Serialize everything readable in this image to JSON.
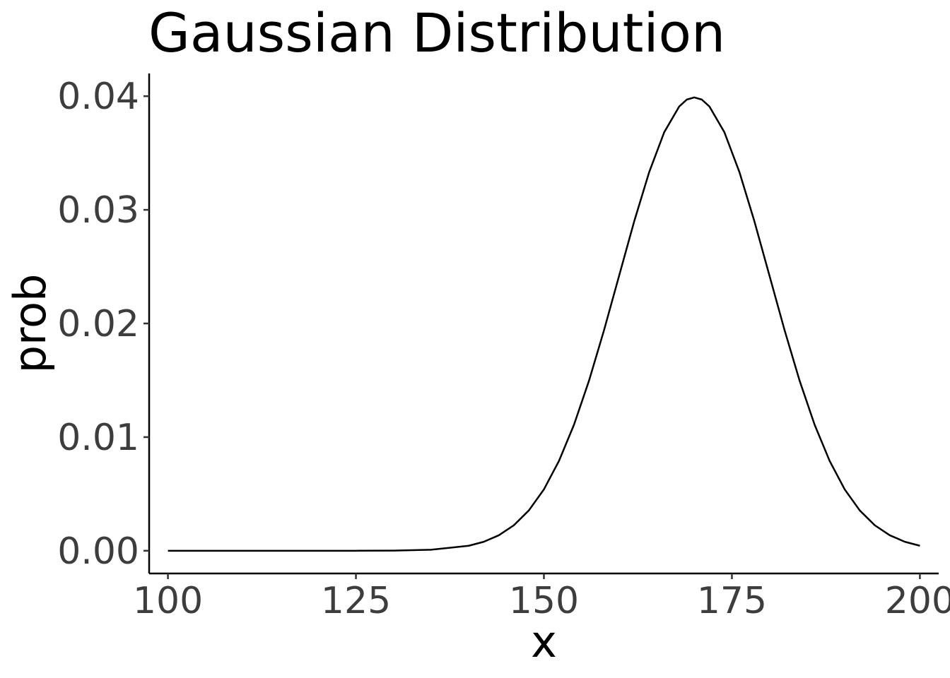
{
  "chart_data": {
    "type": "line",
    "title": "Gaussian Distribution",
    "xlabel": "x",
    "ylabel": "prob",
    "xlim": [
      97.5,
      202.5
    ],
    "ylim": [
      -0.002,
      0.042
    ],
    "x_ticks": [
      100,
      125,
      150,
      175,
      200
    ],
    "x_tick_labels": [
      "100",
      "125",
      "150",
      "175",
      "200"
    ],
    "y_ticks": [
      0,
      0.01,
      0.02,
      0.03,
      0.04
    ],
    "y_tick_labels": [
      "0.00",
      "0.01",
      "0.02",
      "0.03",
      "0.04"
    ],
    "grid": false,
    "legend": "none",
    "line_color": "#000000",
    "series": [
      {
        "x": [
          100,
          105,
          110,
          115,
          120,
          125,
          130,
          135,
          140,
          142,
          144,
          146,
          148,
          150,
          152,
          154,
          156,
          158,
          160,
          162,
          164,
          166,
          168,
          169,
          170,
          171,
          172,
          174,
          176,
          178,
          180,
          182,
          184,
          186,
          188,
          190,
          192,
          194,
          196,
          198,
          200
        ],
        "values": [
          0.0,
          0.0,
          0.0,
          0.0,
          0.0,
          0.0,
          1e-05,
          9e-05,
          0.00044,
          0.00079,
          0.00136,
          0.00224,
          0.00355,
          0.0054,
          0.0079,
          0.01109,
          0.01497,
          0.01942,
          0.0242,
          0.02897,
          0.03332,
          0.03683,
          0.0391,
          0.0397,
          0.03989,
          0.0397,
          0.0391,
          0.03683,
          0.03332,
          0.02897,
          0.0242,
          0.01942,
          0.01497,
          0.01109,
          0.0079,
          0.0054,
          0.00355,
          0.00224,
          0.00136,
          0.00079,
          0.00044
        ]
      }
    ]
  }
}
